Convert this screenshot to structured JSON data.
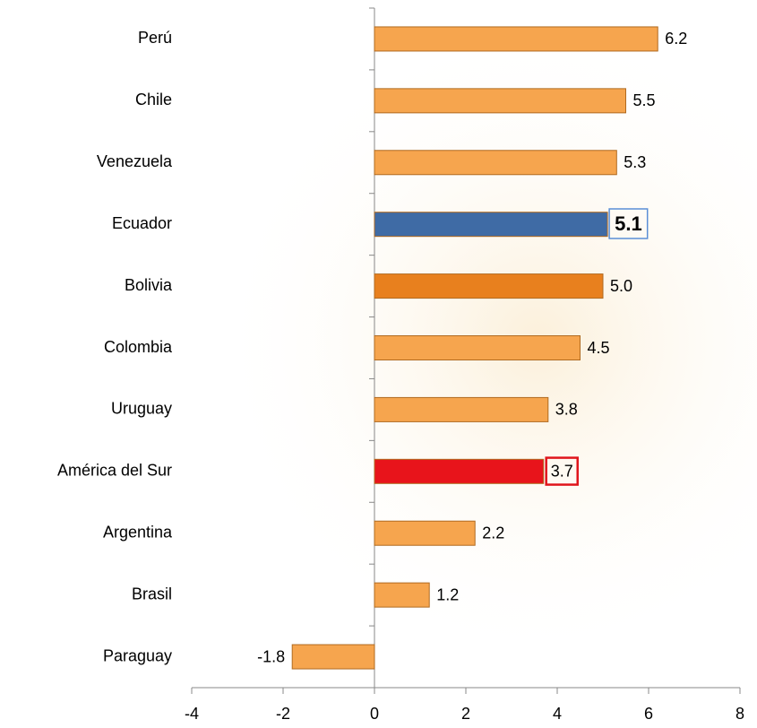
{
  "chart_data": {
    "type": "bar",
    "orientation": "horizontal",
    "categories": [
      "Perú",
      "Chile",
      "Venezuela",
      "Ecuador",
      "Bolivia",
      "Colombia",
      "Uruguay",
      "América del Sur",
      "Argentina",
      "Brasil",
      "Paraguay"
    ],
    "values": [
      6.2,
      5.5,
      5.3,
      5.1,
      5,
      4.5,
      3.8,
      3.7,
      2.2,
      1.2,
      -1.8
    ],
    "value_labels": [
      "6.2",
      "5.5",
      "5.3",
      "5.1",
      "5.0",
      "4.5",
      "3.8",
      "3.7",
      "2.2",
      "1.2",
      "-1.8"
    ],
    "colors": [
      "#f6a54e",
      "#f6a54e",
      "#f6a54e",
      "#3f6ba5",
      "#e8801e",
      "#f6a54e",
      "#f6a54e",
      "#e8141b",
      "#f6a54e",
      "#f6a54e",
      "#f6a54e"
    ],
    "xlim": [
      -4,
      8
    ],
    "xticks": [
      -4,
      -2,
      0,
      2,
      4,
      6,
      8
    ],
    "grid": false
  }
}
